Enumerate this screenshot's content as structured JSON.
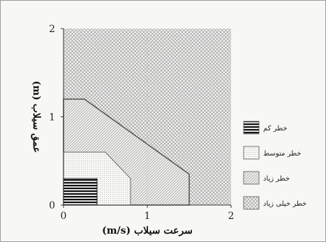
{
  "chart_data": {
    "type": "area",
    "xlabel": "سرعت سیلاب (m/s)",
    "ylabel": "عمق سیلاب (m)",
    "xlim": [
      0,
      2
    ],
    "ylim": [
      0,
      2
    ],
    "xticks": [
      "0",
      "1",
      "2"
    ],
    "yticks": [
      "0",
      "1",
      "2"
    ],
    "grid": false,
    "legend_position": "right",
    "series": [
      {
        "name": "خطر خیلی زیاد",
        "pattern": "cross-hatch",
        "color": "#5a5a5a",
        "polygon": [
          [
            0,
            0
          ],
          [
            2,
            0
          ],
          [
            2,
            2
          ],
          [
            0,
            2
          ]
        ]
      },
      {
        "name": "خطر زیاد",
        "pattern": "diagonal-lines",
        "color": "#5a5a5a",
        "polygon": [
          [
            0,
            0
          ],
          [
            1.5,
            0
          ],
          [
            1.5,
            0.35
          ],
          [
            0.25,
            1.2
          ],
          [
            0,
            1.2
          ]
        ]
      },
      {
        "name": "خطر متوسط",
        "pattern": "dots",
        "color": "#6a6a6a",
        "polygon": [
          [
            0,
            0
          ],
          [
            0.8,
            0
          ],
          [
            0.8,
            0.3
          ],
          [
            0.5,
            0.6
          ],
          [
            0,
            0.6
          ]
        ]
      },
      {
        "name": "خطر کم",
        "pattern": "horizontal-lines",
        "color": "#111111",
        "polygon": [
          [
            0,
            0
          ],
          [
            0.4,
            0
          ],
          [
            0.4,
            0.3
          ],
          [
            0,
            0.3
          ]
        ]
      }
    ],
    "legend_order": [
      "خطر کم",
      "خطر متوسط",
      "خطر زیاد",
      "خطر خیلی زیاد"
    ]
  }
}
